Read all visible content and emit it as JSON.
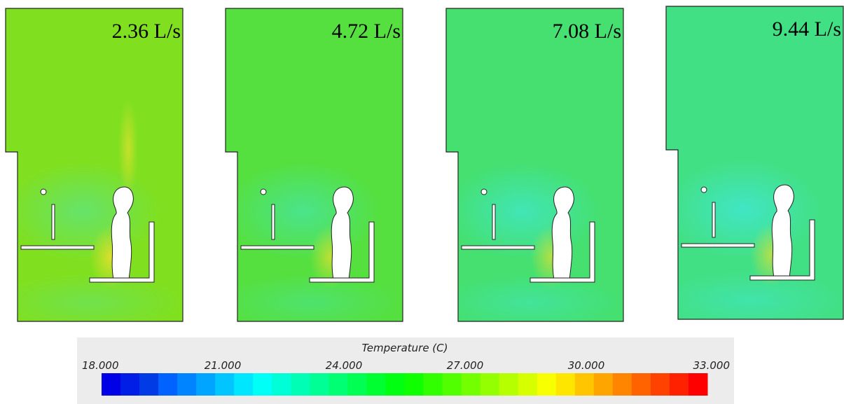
{
  "panels": [
    {
      "label": "2.36 L/s"
    },
    {
      "label": "4.72 L/s"
    },
    {
      "label": "7.08 L/s"
    },
    {
      "label": "9.44 L/s"
    }
  ],
  "colorbar": {
    "title": "Temperature (C)",
    "ticks": [
      "18.000",
      "21.000",
      "24.000",
      "27.000",
      "30.000",
      "33.000"
    ]
  }
}
